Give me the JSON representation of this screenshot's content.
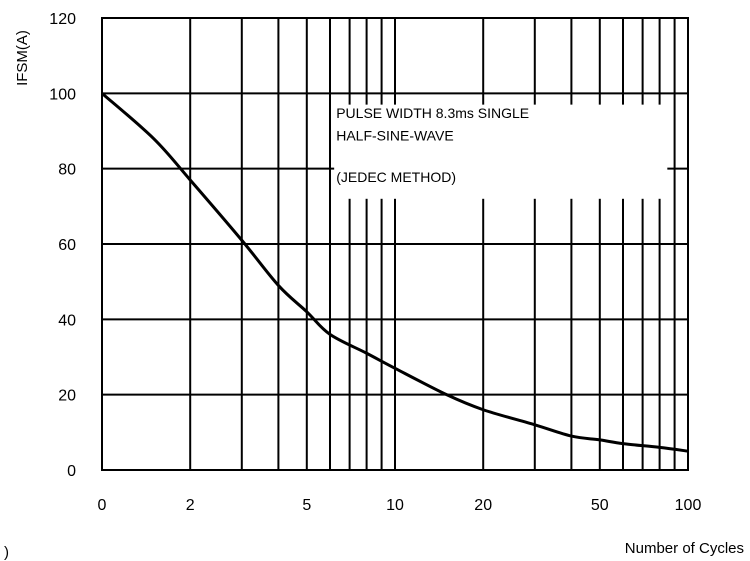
{
  "chart_data": {
    "type": "line",
    "title": "",
    "ylabel": "IFSM(A)",
    "xlabel": "Number of Cycles",
    "x_scale": "log",
    "x_ticks": [
      {
        "value": 1,
        "label": "0"
      },
      {
        "value": 2,
        "label": "2"
      },
      {
        "value": 5,
        "label": "5"
      },
      {
        "value": 10,
        "label": "10"
      },
      {
        "value": 20,
        "label": "20"
      },
      {
        "value": 50,
        "label": "50"
      },
      {
        "value": 100,
        "label": "100"
      }
    ],
    "y_ticks": [
      0,
      20,
      40,
      60,
      80,
      100,
      120
    ],
    "xlim": [
      1,
      100
    ],
    "ylim": [
      0,
      120
    ],
    "grid": true,
    "annotation": {
      "lines": [
        "PULSE WIDTH 8.3ms SINGLE",
        "HALF-SINE-WAVE",
        "(JEDEC METHOD)"
      ]
    },
    "series": [
      {
        "x": [
          1,
          1.5,
          2,
          3,
          4,
          5,
          6,
          8,
          10,
          15,
          20,
          30,
          40,
          50,
          60,
          80,
          100
        ],
        "y": [
          100,
          88,
          77,
          61,
          49,
          42,
          36,
          31,
          27,
          20,
          16,
          12,
          9,
          8,
          7,
          6,
          5
        ]
      }
    ]
  },
  "stray_mark": ")"
}
